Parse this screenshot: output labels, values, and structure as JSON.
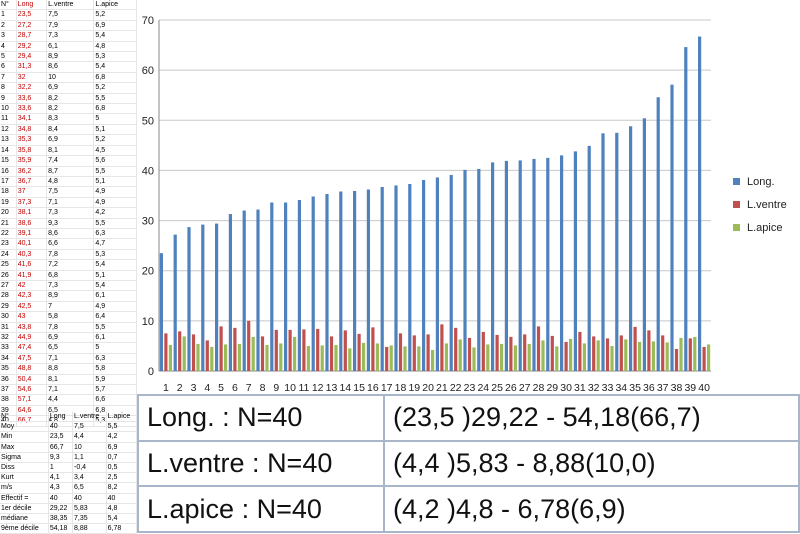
{
  "table": {
    "headers": [
      "N°",
      "Long",
      "L.ventre",
      "L.apice"
    ],
    "rows": [
      [
        "1",
        "23,5",
        "7,5",
        "5,2"
      ],
      [
        "2",
        "27,2",
        "7,9",
        "6,9"
      ],
      [
        "3",
        "28,7",
        "7,3",
        "5,4"
      ],
      [
        "4",
        "29,2",
        "6,1",
        "4,8"
      ],
      [
        "5",
        "29,4",
        "8,9",
        "5,3"
      ],
      [
        "6",
        "31,3",
        "8,6",
        "5,4"
      ],
      [
        "7",
        "32",
        "10",
        "6,8"
      ],
      [
        "8",
        "32,2",
        "6,9",
        "5,2"
      ],
      [
        "9",
        "33,6",
        "8,2",
        "5,5"
      ],
      [
        "10",
        "33,6",
        "8,2",
        "6,8"
      ],
      [
        "11",
        "34,1",
        "8,3",
        "5"
      ],
      [
        "12",
        "34,8",
        "8,4",
        "5,1"
      ],
      [
        "13",
        "35,3",
        "6,9",
        "5,2"
      ],
      [
        "14",
        "35,8",
        "8,1",
        "4,5"
      ],
      [
        "15",
        "35,9",
        "7,4",
        "5,6"
      ],
      [
        "16",
        "36,2",
        "8,7",
        "5,5"
      ],
      [
        "17",
        "36,7",
        "4,8",
        "5,1"
      ],
      [
        "18",
        "37",
        "7,5",
        "4,9"
      ],
      [
        "19",
        "37,3",
        "7,1",
        "4,9"
      ],
      [
        "20",
        "38,1",
        "7,3",
        "4,2"
      ],
      [
        "21",
        "38,6",
        "9,3",
        "5,5"
      ],
      [
        "22",
        "39,1",
        "8,6",
        "6,3"
      ],
      [
        "23",
        "40,1",
        "6,6",
        "4,7"
      ],
      [
        "24",
        "40,3",
        "7,8",
        "5,3"
      ],
      [
        "25",
        "41,6",
        "7,2",
        "5,4"
      ],
      [
        "26",
        "41,9",
        "6,8",
        "5,1"
      ],
      [
        "27",
        "42",
        "7,3",
        "5,4"
      ],
      [
        "28",
        "42,3",
        "8,9",
        "6,1"
      ],
      [
        "29",
        "42,5",
        "7",
        "4,9"
      ],
      [
        "30",
        "43",
        "5,8",
        "6,4"
      ],
      [
        "31",
        "43,8",
        "7,8",
        "5,5"
      ],
      [
        "32",
        "44,9",
        "6,9",
        "6,1"
      ],
      [
        "33",
        "47,4",
        "6,5",
        "5"
      ],
      [
        "34",
        "47,5",
        "7,1",
        "6,3"
      ],
      [
        "35",
        "48,8",
        "8,8",
        "5,8"
      ],
      [
        "36",
        "50,4",
        "8,1",
        "5,9"
      ],
      [
        "37",
        "54,6",
        "7,1",
        "5,7"
      ],
      [
        "38",
        "57,1",
        "4,4",
        "6,6"
      ],
      [
        "39",
        "64,6",
        "6,5",
        "6,8"
      ],
      [
        "40",
        "66,7",
        "4,8",
        "5,3"
      ]
    ]
  },
  "stats": {
    "headers": [
      "N°",
      "Long",
      "L.ventre",
      "L.apice"
    ],
    "rows": [
      [
        "Moy",
        "40",
        "7,5",
        "5,5"
      ],
      [
        "Min",
        "23,5",
        "4,4",
        "4,2"
      ],
      [
        "Max",
        "66,7",
        "10",
        "6,9"
      ],
      [
        "Sigma",
        "9,3",
        "1,1",
        "0,7"
      ],
      [
        "Diss",
        "1",
        "-0,4",
        "0,5"
      ],
      [
        "Kurt",
        "4,1",
        "3,4",
        "2,5"
      ],
      [
        "m/s",
        "4,3",
        "6,5",
        "8,2"
      ],
      [
        "Effectif =",
        "40",
        "40",
        "40"
      ],
      [
        "1er décile",
        "29,22",
        "5,83",
        "4,8"
      ],
      [
        "médiane",
        "38,35",
        "7,35",
        "5,4"
      ],
      [
        "9ème décile",
        "54,18",
        "8,88",
        "6,78"
      ]
    ]
  },
  "ranges": [
    {
      "label": "Long. : N=40",
      "value": "(23,5 )29,22 - 54,18(66,7)"
    },
    {
      "label": "L.ventre : N=40",
      "value": "(4,4 )5,83 - 8,88(10,0)"
    },
    {
      "label": "L.apice : N=40",
      "value": "(4,2 )4,8 - 6,78(6,9)"
    }
  ],
  "chart_data": {
    "type": "bar",
    "categories": [
      "1",
      "2",
      "3",
      "4",
      "5",
      "6",
      "7",
      "8",
      "9",
      "10",
      "11",
      "12",
      "13",
      "14",
      "15",
      "16",
      "17",
      "18",
      "19",
      "20",
      "21",
      "22",
      "23",
      "24",
      "25",
      "26",
      "27",
      "28",
      "29",
      "30",
      "31",
      "32",
      "33",
      "34",
      "35",
      "36",
      "37",
      "38",
      "39",
      "40"
    ],
    "series": [
      {
        "name": "Long.",
        "color": "#4f81bd",
        "values": [
          23.5,
          27.2,
          28.7,
          29.2,
          29.4,
          31.3,
          32,
          32.2,
          33.6,
          33.6,
          34.1,
          34.8,
          35.3,
          35.8,
          35.9,
          36.2,
          36.7,
          37,
          37.3,
          38.1,
          38.6,
          39.1,
          40.1,
          40.3,
          41.6,
          41.9,
          42,
          42.3,
          42.5,
          43,
          43.8,
          44.9,
          47.4,
          47.5,
          48.8,
          50.4,
          54.6,
          57.1,
          64.6,
          66.7
        ]
      },
      {
        "name": "L.ventre",
        "color": "#c0504d",
        "values": [
          7.5,
          7.9,
          7.3,
          6.1,
          8.9,
          8.6,
          10,
          6.9,
          8.2,
          8.2,
          8.3,
          8.4,
          6.9,
          8.1,
          7.4,
          8.7,
          4.8,
          7.5,
          7.1,
          7.3,
          9.3,
          8.6,
          6.6,
          7.8,
          7.2,
          6.8,
          7.3,
          8.9,
          7,
          5.8,
          7.8,
          6.9,
          6.5,
          7.1,
          8.8,
          8.1,
          7.1,
          4.4,
          6.5,
          4.8
        ]
      },
      {
        "name": "L.apice",
        "color": "#9bbb59",
        "values": [
          5.2,
          6.9,
          5.4,
          4.8,
          5.3,
          5.4,
          6.8,
          5.2,
          5.5,
          6.8,
          5,
          5.1,
          5.2,
          4.5,
          5.6,
          5.5,
          5.1,
          4.9,
          4.9,
          4.2,
          5.5,
          6.3,
          4.7,
          5.3,
          5.4,
          5.1,
          5.4,
          6.1,
          4.9,
          6.4,
          5.5,
          6.1,
          5,
          6.3,
          5.8,
          5.9,
          5.7,
          6.6,
          6.8,
          5.3
        ]
      }
    ],
    "yticks": [
      "0",
      "10",
      "20",
      "30",
      "40",
      "50",
      "60",
      "70"
    ],
    "ylim": [
      0,
      70
    ],
    "grid": true,
    "legend": "right"
  }
}
